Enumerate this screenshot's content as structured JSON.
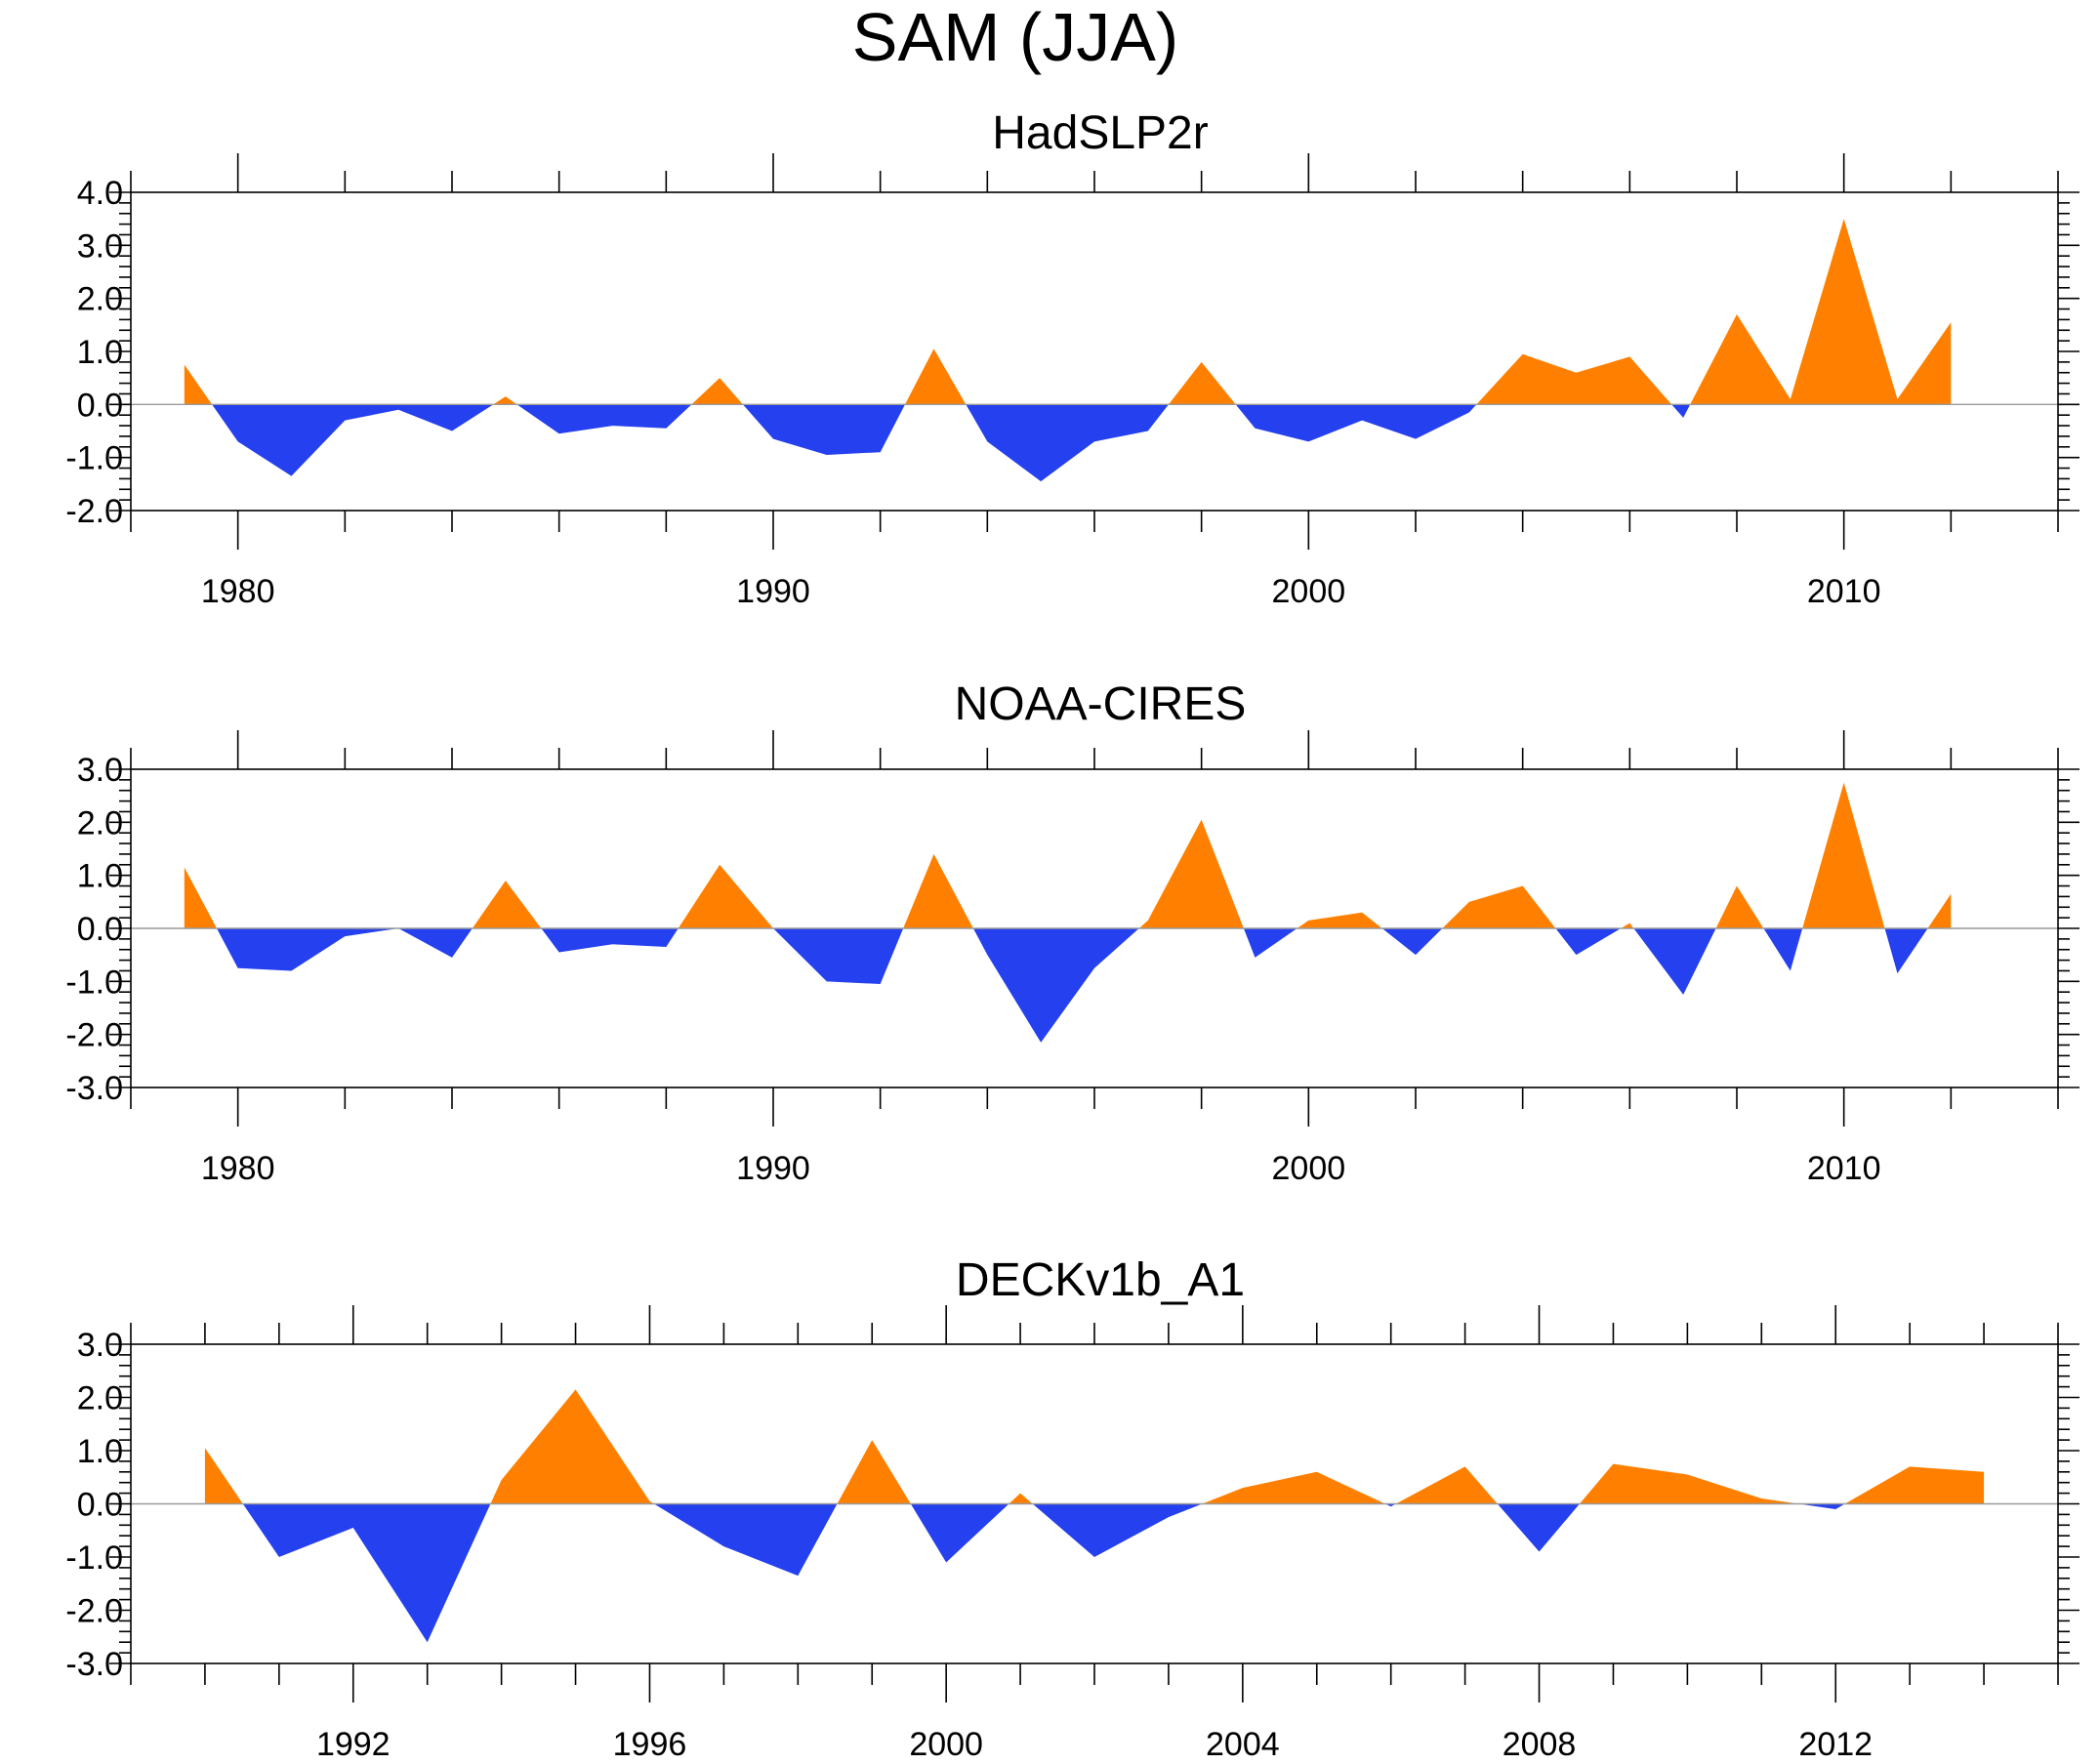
{
  "figure": {
    "title": "SAM (JJA)",
    "colors": {
      "positive": "#ff8000",
      "negative": "#2540ee",
      "zero_line": "#9a9a9a"
    }
  },
  "chart_data": [
    {
      "type": "area",
      "title": "HadSLP2r",
      "xlim": [
        1978,
        2014
      ],
      "ylim": [
        -2,
        4
      ],
      "y_ticks": [
        -2,
        -1,
        0,
        1,
        2,
        3,
        4
      ],
      "y_tick_labels": [
        "-2.0",
        "-1.0",
        "0.0",
        "1.0",
        "2.0",
        "3.0",
        "4.0"
      ],
      "y_minor_step": 0.2,
      "x_major_ticks": [
        1980,
        1990,
        2000,
        2010
      ],
      "x_tick_labels": [
        "1980",
        "1990",
        "2000",
        "2010"
      ],
      "x_minor_step": 2,
      "x": [
        1979,
        1980,
        1981,
        1982,
        1983,
        1984,
        1985,
        1986,
        1987,
        1988,
        1989,
        1990,
        1991,
        1992,
        1993,
        1994,
        1995,
        1996,
        1997,
        1998,
        1999,
        2000,
        2001,
        2002,
        2003,
        2004,
        2005,
        2006,
        2007,
        2008,
        2009,
        2010,
        2011,
        2012
      ],
      "y": [
        0.75,
        -0.7,
        -1.35,
        -0.3,
        -0.1,
        -0.5,
        0.15,
        -0.55,
        -0.4,
        -0.45,
        0.5,
        -0.65,
        -0.95,
        -0.9,
        1.05,
        -0.7,
        -1.45,
        -0.7,
        -0.5,
        0.8,
        -0.45,
        -0.7,
        -0.3,
        -0.65,
        -0.15,
        0.95,
        0.6,
        0.9,
        -0.25,
        1.7,
        0.1,
        3.5,
        0.1,
        1.55
      ]
    },
    {
      "type": "area",
      "title": "NOAA-CIRES",
      "xlim": [
        1978,
        2014
      ],
      "ylim": [
        -3,
        3
      ],
      "y_ticks": [
        -3,
        -2,
        -1,
        0,
        1,
        2,
        3
      ],
      "y_tick_labels": [
        "-3.0",
        "-2.0",
        "-1.0",
        "0.0",
        "1.0",
        "2.0",
        "3.0"
      ],
      "y_minor_step": 0.2,
      "x_major_ticks": [
        1980,
        1990,
        2000,
        2010
      ],
      "x_tick_labels": [
        "1980",
        "1990",
        "2000",
        "2010"
      ],
      "x_minor_step": 2,
      "x": [
        1979,
        1980,
        1981,
        1982,
        1983,
        1984,
        1985,
        1986,
        1987,
        1988,
        1989,
        1990,
        1991,
        1992,
        1993,
        1994,
        1995,
        1996,
        1997,
        1998,
        1999,
        2000,
        2001,
        2002,
        2003,
        2004,
        2005,
        2006,
        2007,
        2008,
        2009,
        2010,
        2011,
        2012
      ],
      "y": [
        1.15,
        -0.75,
        -0.8,
        -0.15,
        0.0,
        -0.55,
        0.9,
        -0.45,
        -0.3,
        -0.35,
        1.2,
        0.0,
        -1.0,
        -1.05,
        1.4,
        -0.5,
        -2.15,
        -0.75,
        0.15,
        2.05,
        -0.55,
        0.15,
        0.3,
        -0.5,
        0.5,
        0.8,
        -0.5,
        0.1,
        -1.25,
        0.8,
        -0.8,
        2.75,
        -0.85,
        0.65
      ]
    },
    {
      "type": "area",
      "title": "DECKv1b_A1",
      "xlim": [
        1989,
        2015
      ],
      "ylim": [
        -3,
        3
      ],
      "y_ticks": [
        -3,
        -2,
        -1,
        0,
        1,
        2,
        3
      ],
      "y_tick_labels": [
        "-3.0",
        "-2.0",
        "-1.0",
        "0.0",
        "1.0",
        "2.0",
        "3.0"
      ],
      "y_minor_step": 0.2,
      "x_major_ticks": [
        1992,
        1996,
        2000,
        2004,
        2008,
        2012
      ],
      "x_tick_labels": [
        "1992",
        "1996",
        "2000",
        "2004",
        "2008",
        "2012"
      ],
      "x_minor_step": 1,
      "x": [
        1990,
        1991,
        1992,
        1993,
        1994,
        1995,
        1996,
        1997,
        1998,
        1999,
        2000,
        2001,
        2002,
        2003,
        2004,
        2005,
        2006,
        2007,
        2008,
        2009,
        2010,
        2011,
        2012,
        2013,
        2014
      ],
      "y": [
        1.05,
        -1.0,
        -0.45,
        -2.6,
        0.45,
        2.15,
        0.05,
        -0.8,
        -1.35,
        1.2,
        -1.1,
        0.2,
        -1.0,
        -0.25,
        0.3,
        0.6,
        -0.05,
        0.7,
        -0.9,
        0.75,
        0.55,
        0.1,
        -0.1,
        0.7,
        0.6
      ]
    }
  ]
}
